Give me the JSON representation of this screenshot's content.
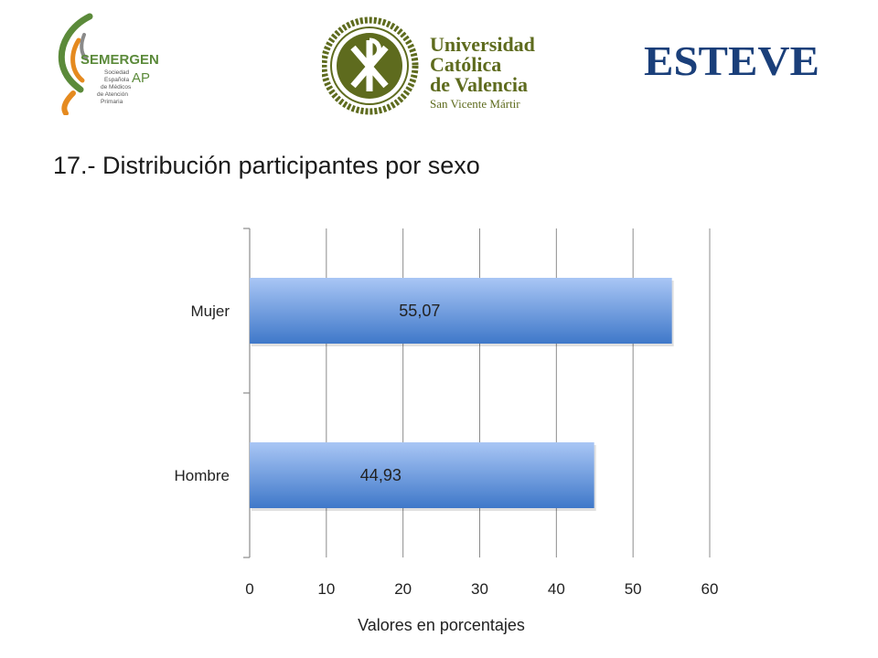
{
  "logos": {
    "semergen": {
      "name": "SEMERGEN",
      "suffix": "AP",
      "subtitle_lines": [
        "Sociedad",
        "Española",
        "de Médicos",
        "de Atención",
        "Primaria"
      ],
      "colors": {
        "green": "#5b8a3a",
        "orange": "#e58a1f",
        "gray": "#8a8a8a"
      }
    },
    "ucv": {
      "lines": [
        "Universidad",
        "Católica",
        "de Valencia",
        "San Vicente Mártir"
      ],
      "color": "#5e6b1e"
    },
    "esteve": {
      "name": "ESTEVE",
      "color": "#1a3f7a"
    }
  },
  "slide": {
    "title": "17.- Distribución participantes por sexo"
  },
  "colors": {
    "bar_top": "#a9c6f5",
    "bar_bottom": "#3f78c9",
    "grid": "#8c8c8c",
    "axis": "#8c8c8c"
  },
  "chart_data": {
    "type": "bar",
    "orientation": "horizontal",
    "title": "",
    "categories": [
      "Mujer",
      "Hombre"
    ],
    "values": [
      55.07,
      44.93
    ],
    "data_labels": [
      "55,07",
      "44,93"
    ],
    "xlabel": "Valores en porcentajes",
    "ylabel": "",
    "xlim": [
      0,
      60
    ],
    "xticks": [
      0,
      10,
      20,
      30,
      40,
      50,
      60
    ],
    "xtick_labels": [
      "0",
      "10",
      "20",
      "30",
      "40",
      "50",
      "60"
    ],
    "grid": true,
    "legend": false
  }
}
